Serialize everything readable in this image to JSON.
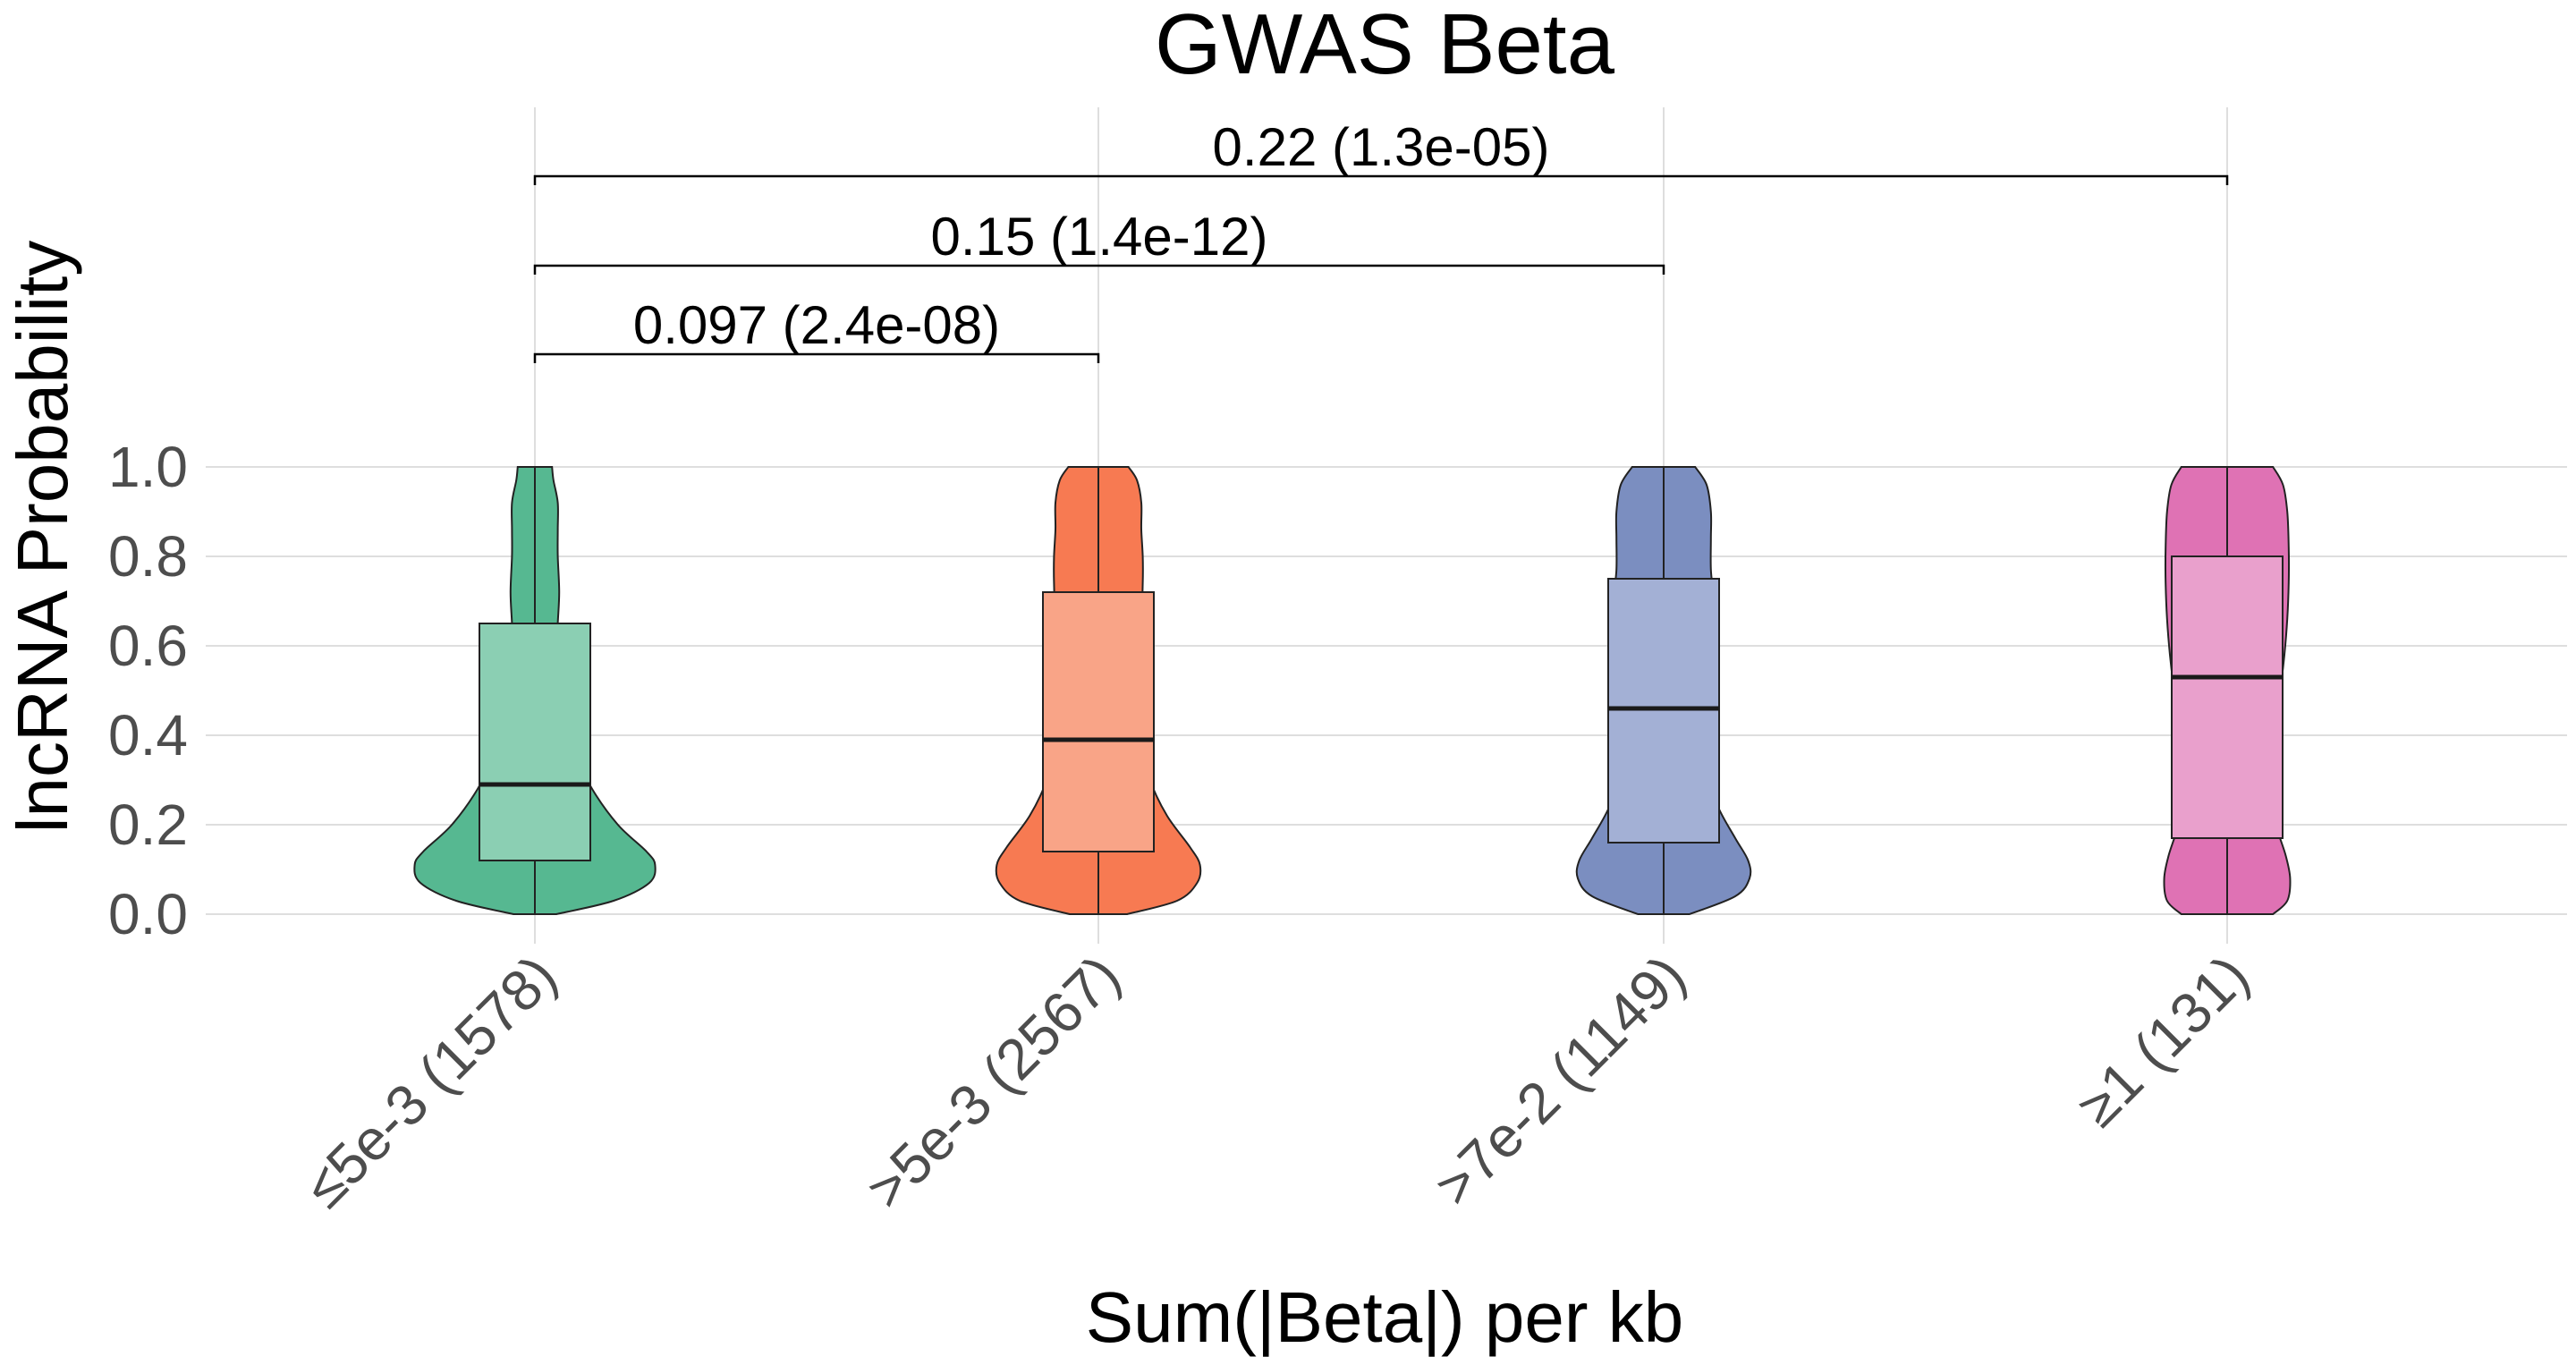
{
  "chart_data": {
    "type": "violin",
    "title": "GWAS Beta",
    "xlabel": "Sum(|Beta|) per kb",
    "ylabel": "lncRNA Probability",
    "ylim": [
      0,
      1
    ],
    "yticks": [
      0.0,
      0.2,
      0.4,
      0.6,
      0.8,
      1.0
    ],
    "ytick_labels": [
      "0.0",
      "0.2",
      "0.4",
      "0.6",
      "0.8",
      "1.0"
    ],
    "grid": true,
    "legend": "none",
    "categories": [
      "≤5e-3 (1578)",
      ">5e-3 (2567)",
      ">7e-2 (1149)",
      "≥1 (131)"
    ],
    "colors": [
      "#56b891",
      "#f77a52",
      "#7b8ec0",
      "#df72b4"
    ],
    "box_colors": [
      "#8bcfb3",
      "#f9a487",
      "#a3b0d5",
      "#e9a0cc"
    ],
    "series": [
      {
        "category": "≤5e-3 (1578)",
        "boxplot": {
          "min": 0.0,
          "q1": 0.12,
          "median": 0.29,
          "q3": 0.65,
          "max": 1.0
        },
        "density_y": [
          0.0,
          0.03,
          0.07,
          0.11,
          0.14,
          0.2,
          0.28,
          0.35,
          0.42,
          0.5,
          0.58,
          0.65,
          0.72,
          0.8,
          0.86,
          0.92,
          0.97,
          1.0
        ],
        "density_halfwidth": [
          0.15,
          0.55,
          0.8,
          0.84,
          0.78,
          0.58,
          0.4,
          0.3,
          0.22,
          0.17,
          0.15,
          0.16,
          0.17,
          0.16,
          0.16,
          0.16,
          0.13,
          0.12
        ]
      },
      {
        "category": ">5e-3 (2567)",
        "boxplot": {
          "min": 0.0,
          "q1": 0.14,
          "median": 0.39,
          "q3": 0.72,
          "max": 1.0
        },
        "density_y": [
          0.0,
          0.03,
          0.07,
          0.11,
          0.15,
          0.22,
          0.3,
          0.38,
          0.45,
          0.52,
          0.6,
          0.67,
          0.74,
          0.8,
          0.86,
          0.92,
          0.97,
          1.0
        ],
        "density_halfwidth": [
          0.2,
          0.55,
          0.69,
          0.71,
          0.64,
          0.48,
          0.36,
          0.3,
          0.26,
          0.25,
          0.26,
          0.3,
          0.31,
          0.31,
          0.3,
          0.3,
          0.27,
          0.21
        ]
      },
      {
        "category": ">7e-2 (1149)",
        "boxplot": {
          "min": 0.0,
          "q1": 0.16,
          "median": 0.46,
          "q3": 0.75,
          "max": 1.0
        },
        "density_y": [
          0.0,
          0.04,
          0.08,
          0.12,
          0.17,
          0.24,
          0.32,
          0.4,
          0.48,
          0.55,
          0.62,
          0.7,
          0.77,
          0.84,
          0.9,
          0.96,
          1.0
        ],
        "density_halfwidth": [
          0.18,
          0.5,
          0.6,
          0.59,
          0.5,
          0.38,
          0.3,
          0.27,
          0.28,
          0.32,
          0.34,
          0.35,
          0.33,
          0.33,
          0.33,
          0.3,
          0.22
        ]
      },
      {
        "category": "≥1 (131)",
        "boxplot": {
          "min": 0.0,
          "q1": 0.17,
          "median": 0.53,
          "q3": 0.8,
          "max": 1.0
        },
        "density_y": [
          0.0,
          0.03,
          0.08,
          0.13,
          0.19,
          0.26,
          0.34,
          0.42,
          0.5,
          0.58,
          0.66,
          0.74,
          0.82,
          0.9,
          0.96,
          1.0
        ],
        "density_halfwidth": [
          0.32,
          0.42,
          0.44,
          0.41,
          0.35,
          0.3,
          0.3,
          0.33,
          0.37,
          0.4,
          0.42,
          0.43,
          0.43,
          0.42,
          0.39,
          0.32
        ]
      }
    ],
    "comparisons": [
      {
        "from": "≤5e-3 (1578)",
        "to": ">5e-3 (2567)",
        "label": "0.097 (2.4e-08)"
      },
      {
        "from": "≤5e-3 (1578)",
        "to": ">7e-2 (1149)",
        "label": "0.15 (1.4e-12)"
      },
      {
        "from": "≤5e-3 (1578)",
        "to": "≥1 (131)",
        "label": "0.22 (1.3e-05)"
      }
    ]
  }
}
